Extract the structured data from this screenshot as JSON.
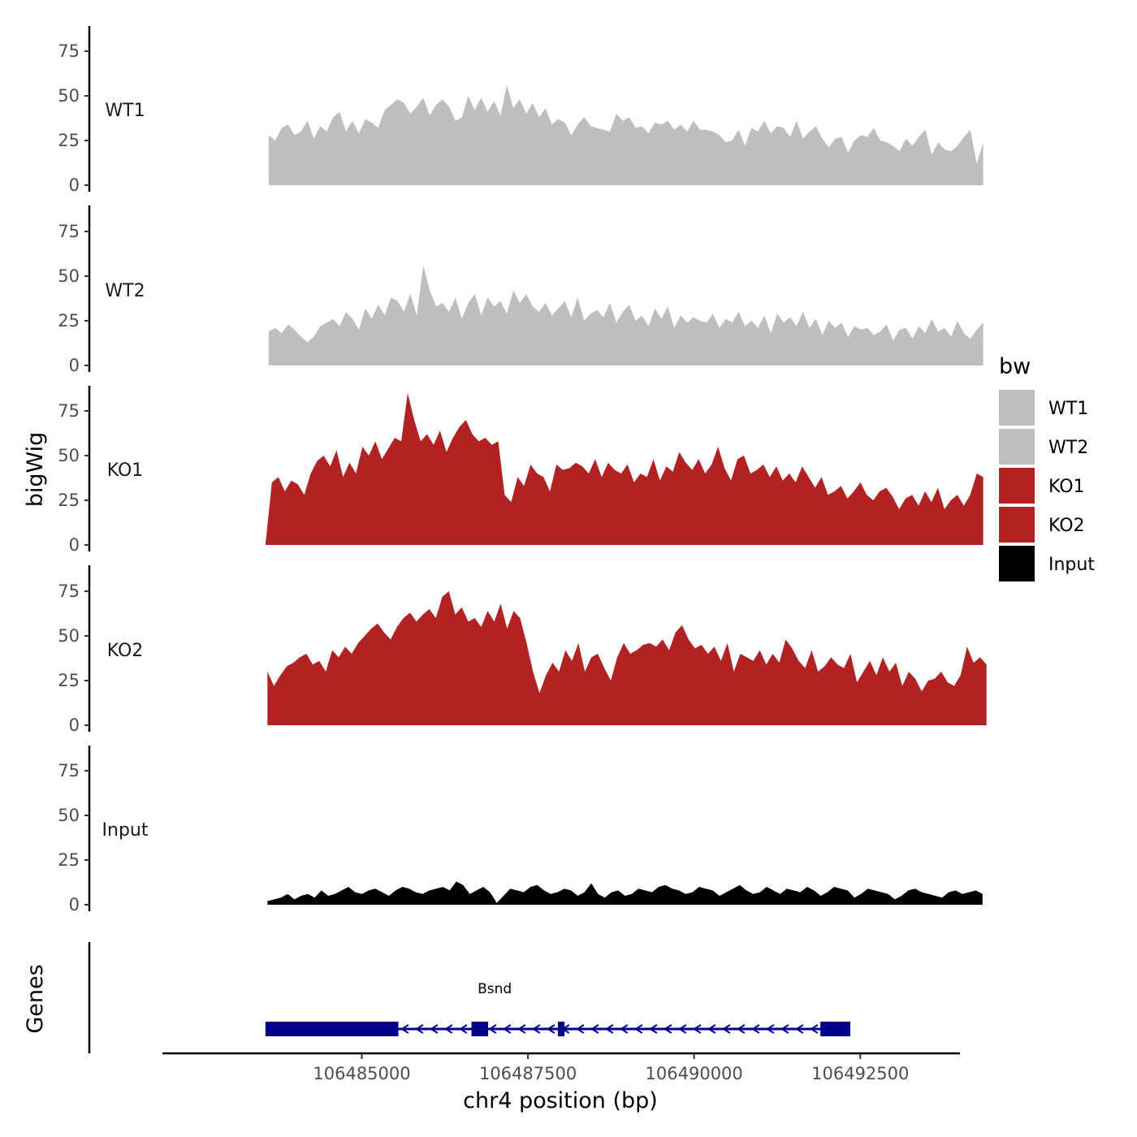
{
  "chart_data": {
    "type": "area",
    "title": "",
    "ylabel": "bigWig",
    "xlabel": "chr4 position (bp)",
    "ylim": [
      0,
      90
    ],
    "y_ticks": [
      0,
      25,
      50,
      75
    ],
    "y_tick_labels": [
      "0",
      "25",
      "50",
      "75"
    ],
    "xlim": [
      106482000,
      106494000
    ],
    "x_ticks": [
      106485000,
      106487500,
      106490000,
      106492500
    ],
    "x_tick_labels": [
      "106485000",
      "106487500",
      "106490000",
      "106492500"
    ],
    "legend": {
      "title": "bw",
      "position": "right",
      "entries": [
        {
          "label": "WT1",
          "color": "#bebebe"
        },
        {
          "label": "WT2",
          "color": "#bebebe"
        },
        {
          "label": "KO1",
          "color": "#b22222"
        },
        {
          "label": "KO2",
          "color": "#b22222"
        },
        {
          "label": "Input",
          "color": "#000000"
        }
      ]
    },
    "series": [
      {
        "name": "WT1",
        "color": "#bebebe",
        "x_start": 106483600,
        "x_end": 106494350,
        "values": [
          28,
          25,
          32,
          34,
          28,
          30,
          36,
          26,
          33,
          30,
          38,
          41,
          30,
          36,
          29,
          37,
          35,
          32,
          42,
          45,
          48,
          46,
          40,
          44,
          49,
          39,
          45,
          48,
          44,
          36,
          38,
          50,
          42,
          49,
          41,
          47,
          39,
          56,
          43,
          48,
          40,
          46,
          38,
          43,
          34,
          37,
          35,
          28,
          34,
          38,
          33,
          32,
          31,
          30,
          40,
          36,
          38,
          32,
          33,
          29,
          35,
          34,
          36,
          31,
          34,
          30,
          36,
          31,
          31,
          30,
          28,
          24,
          25,
          31,
          22,
          32,
          30,
          36,
          29,
          33,
          32,
          27,
          36,
          26,
          30,
          33,
          26,
          21,
          26,
          27,
          18,
          25,
          28,
          27,
          32,
          25,
          24,
          22,
          19,
          26,
          22,
          27,
          31,
          17,
          24,
          20,
          19,
          22,
          27,
          31,
          12,
          24
        ]
      },
      {
        "name": "WT2",
        "color": "#bebebe",
        "x_start": 106483600,
        "x_end": 106494350,
        "values": [
          19,
          21,
          18,
          23,
          20,
          16,
          13,
          16,
          22,
          24,
          26,
          22,
          30,
          26,
          20,
          32,
          26,
          34,
          28,
          38,
          36,
          30,
          40,
          28,
          56,
          42,
          33,
          35,
          30,
          38,
          26,
          35,
          40,
          28,
          38,
          33,
          36,
          29,
          42,
          35,
          40,
          33,
          30,
          35,
          28,
          32,
          36,
          27,
          38,
          25,
          29,
          31,
          27,
          35,
          24,
          30,
          34,
          25,
          28,
          22,
          32,
          26,
          33,
          21,
          28,
          24,
          27,
          25,
          24,
          29,
          21,
          26,
          24,
          30,
          22,
          25,
          21,
          28,
          18,
          29,
          24,
          27,
          22,
          30,
          21,
          26,
          17,
          25,
          21,
          24,
          16,
          22,
          20,
          21,
          17,
          19,
          23,
          14,
          20,
          21,
          15,
          22,
          18,
          26,
          19,
          21,
          16,
          25,
          18,
          15,
          20,
          24
        ]
      },
      {
        "name": "KO1",
        "color": "#b22222",
        "x_start": 106483550,
        "x_end": 106494350,
        "values": [
          0,
          35,
          38,
          30,
          36,
          34,
          28,
          40,
          47,
          50,
          44,
          53,
          38,
          46,
          40,
          55,
          50,
          58,
          48,
          54,
          60,
          58,
          85,
          70,
          58,
          62,
          56,
          64,
          52,
          60,
          66,
          70,
          62,
          58,
          60,
          56,
          58,
          28,
          24,
          38,
          33,
          45,
          40,
          38,
          30,
          45,
          42,
          43,
          46,
          44,
          40,
          48,
          38,
          46,
          42,
          40,
          45,
          35,
          40,
          38,
          48,
          36,
          44,
          41,
          52,
          46,
          42,
          48,
          40,
          45,
          55,
          43,
          36,
          48,
          50,
          40,
          42,
          45,
          38,
          44,
          36,
          40,
          35,
          44,
          38,
          32,
          38,
          28,
          30,
          33,
          26,
          30,
          35,
          28,
          25,
          30,
          32,
          27,
          20,
          26,
          28,
          22,
          30,
          24,
          32,
          20,
          25,
          28,
          22,
          28,
          40,
          38
        ]
      },
      {
        "name": "KO2",
        "color": "#b22222",
        "x_start": 106483580,
        "x_end": 106494400,
        "values": [
          30,
          22,
          28,
          33,
          35,
          38,
          40,
          34,
          36,
          30,
          42,
          38,
          44,
          40,
          46,
          50,
          54,
          57,
          52,
          48,
          55,
          60,
          63,
          58,
          62,
          65,
          60,
          72,
          75,
          62,
          66,
          58,
          60,
          55,
          64,
          58,
          68,
          54,
          64,
          60,
          46,
          30,
          18,
          28,
          35,
          30,
          42,
          36,
          46,
          30,
          38,
          40,
          32,
          25,
          38,
          46,
          40,
          42,
          45,
          46,
          44,
          48,
          42,
          52,
          56,
          48,
          43,
          45,
          40,
          44,
          36,
          46,
          30,
          40,
          38,
          36,
          42,
          34,
          40,
          35,
          48,
          43,
          36,
          32,
          42,
          30,
          33,
          38,
          34,
          32,
          40,
          24,
          30,
          36,
          28,
          38,
          30,
          35,
          22,
          30,
          26,
          19,
          25,
          26,
          30,
          24,
          22,
          28,
          44,
          35,
          38,
          34
        ]
      },
      {
        "name": "Input",
        "color": "#000000",
        "x_start": 106483580,
        "x_end": 106494340,
        "values": [
          2,
          3,
          4,
          6,
          3,
          5,
          6,
          4,
          8,
          5,
          6,
          8,
          10,
          7,
          6,
          8,
          9,
          7,
          5,
          8,
          10,
          9,
          7,
          6,
          8,
          9,
          10,
          8,
          13,
          11,
          6,
          8,
          10,
          7,
          1,
          5,
          9,
          8,
          7,
          10,
          11,
          8,
          6,
          7,
          9,
          8,
          5,
          7,
          12,
          6,
          4,
          7,
          8,
          5,
          6,
          9,
          8,
          7,
          10,
          11,
          9,
          8,
          6,
          7,
          10,
          9,
          8,
          5,
          7,
          9,
          11,
          8,
          6,
          7,
          10,
          8,
          6,
          9,
          8,
          7,
          10,
          8,
          5,
          7,
          10,
          9,
          8,
          4,
          6,
          9,
          8,
          7,
          6,
          3,
          5,
          8,
          9,
          7,
          6,
          5,
          4,
          7,
          8,
          6,
          7,
          8,
          6
        ]
      }
    ],
    "tracks": [
      {
        "label": "WT1"
      },
      {
        "label": "WT2"
      },
      {
        "label": "KO1"
      },
      {
        "label": "KO2"
      },
      {
        "label": "Input"
      }
    ],
    "genes": {
      "track_label": "Genes",
      "color": "#00008b",
      "items": [
        {
          "name": "Bsnd",
          "strand": "-",
          "start": 106483550,
          "end": 106492350,
          "exons": [
            [
              106483550,
              106485550
            ],
            [
              106486650,
              106486900
            ],
            [
              106487950,
              106488050
            ],
            [
              106491900,
              106492350
            ]
          ]
        }
      ]
    }
  }
}
